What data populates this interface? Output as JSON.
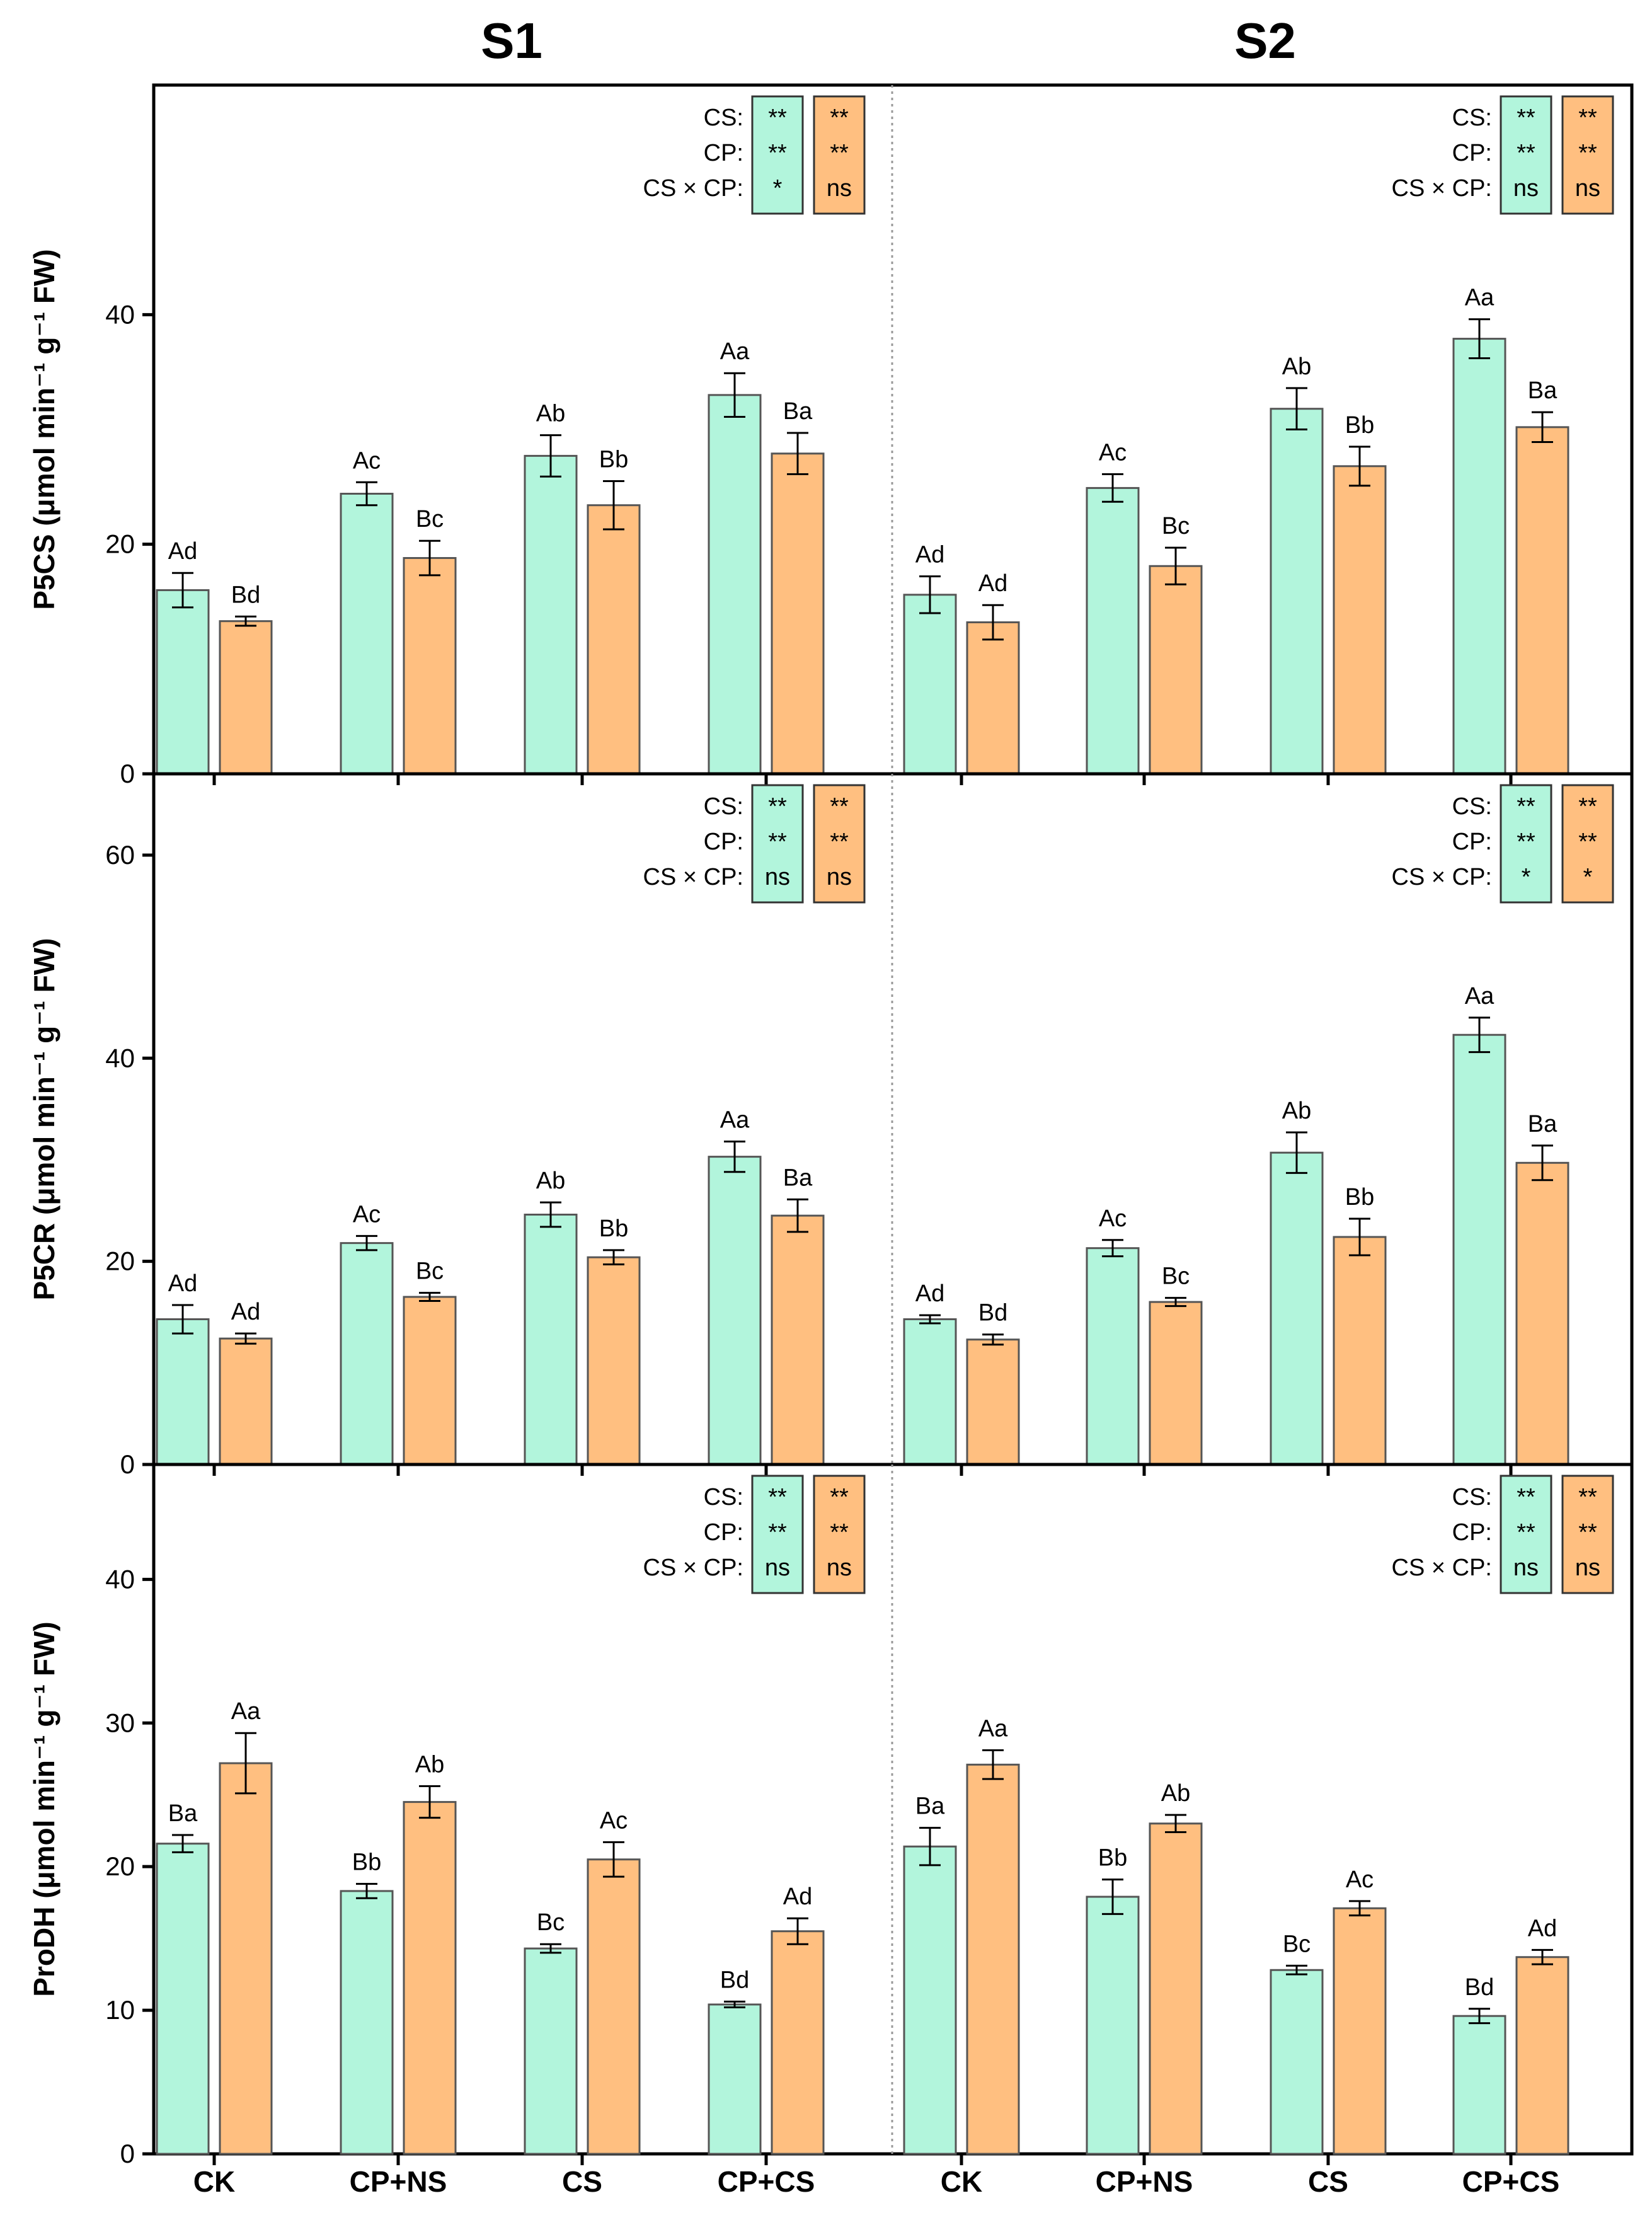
{
  "headers": [
    "S1",
    "S2"
  ],
  "categories": [
    "CK",
    "CP+NS",
    "CS",
    "CP+CS"
  ],
  "colors": {
    "series_a": "#b2f5dc",
    "series_b": "#ffbf80",
    "axis": "#000000",
    "divider": "#999999"
  },
  "chart_data": [
    {
      "type": "bar",
      "ylabel": "P5CS (μmol min⁻¹ g⁻¹ FW)",
      "ylim": [
        0,
        60
      ],
      "yticks": [
        0,
        20,
        40
      ],
      "stat_labels": [
        "CS:",
        "CP:",
        "CS × CP:"
      ],
      "groups": [
        {
          "name": "S1",
          "stat_sig": {
            "a": [
              "**",
              "**",
              "*"
            ],
            "b": [
              "**",
              "**",
              "ns"
            ]
          },
          "series": [
            {
              "name": "A",
              "values": [
                16.0,
                24.4,
                27.7,
                33.0
              ],
              "errors": [
                1.5,
                1.0,
                1.8,
                1.9
              ],
              "letters": [
                "Ad",
                "Ac",
                "Ab",
                "Aa"
              ]
            },
            {
              "name": "B",
              "values": [
                13.3,
                18.8,
                23.4,
                27.9
              ],
              "errors": [
                0.4,
                1.5,
                2.1,
                1.8
              ],
              "letters": [
                "Bd",
                "Bc",
                "Bb",
                "Ba"
              ]
            }
          ]
        },
        {
          "name": "S2",
          "stat_sig": {
            "a": [
              "**",
              "**",
              "ns"
            ],
            "b": [
              "**",
              "**",
              "ns"
            ]
          },
          "series": [
            {
              "name": "A",
              "values": [
                15.6,
                24.9,
                31.8,
                37.9
              ],
              "errors": [
                1.6,
                1.2,
                1.8,
                1.7
              ],
              "letters": [
                "Ad",
                "Ac",
                "Ab",
                "Aa"
              ]
            },
            {
              "name": "B",
              "values": [
                13.2,
                18.1,
                26.8,
                30.2
              ],
              "errors": [
                1.5,
                1.6,
                1.7,
                1.3
              ],
              "letters": [
                "Ad",
                "Bc",
                "Bb",
                "Ba"
              ]
            }
          ]
        }
      ]
    },
    {
      "type": "bar",
      "ylabel": "P5CR (μmol min⁻¹ g⁻¹ FW)",
      "ylim": [
        0,
        68
      ],
      "yticks": [
        0,
        20,
        40,
        60
      ],
      "stat_labels": [
        "CS:",
        "CP:",
        "CS × CP:"
      ],
      "groups": [
        {
          "name": "S1",
          "stat_sig": {
            "a": [
              "**",
              "**",
              "ns"
            ],
            "b": [
              "**",
              "**",
              "ns"
            ]
          },
          "series": [
            {
              "name": "A",
              "values": [
                14.3,
                21.8,
                24.6,
                30.3
              ],
              "errors": [
                1.4,
                0.7,
                1.2,
                1.5
              ],
              "letters": [
                "Ad",
                "Ac",
                "Ab",
                "Aa"
              ]
            },
            {
              "name": "B",
              "values": [
                12.4,
                16.5,
                20.4,
                24.5
              ],
              "errors": [
                0.5,
                0.4,
                0.7,
                1.6
              ],
              "letters": [
                "Ad",
                "Bc",
                "Bb",
                "Ba"
              ]
            }
          ]
        },
        {
          "name": "S2",
          "stat_sig": {
            "a": [
              "**",
              "**",
              "*"
            ],
            "b": [
              "**",
              "**",
              "*"
            ]
          },
          "series": [
            {
              "name": "A",
              "values": [
                14.3,
                21.3,
                30.7,
                42.3
              ],
              "errors": [
                0.4,
                0.8,
                2.0,
                1.7
              ],
              "letters": [
                "Ad",
                "Ac",
                "Ab",
                "Aa"
              ]
            },
            {
              "name": "B",
              "values": [
                12.3,
                16.0,
                22.4,
                29.7
              ],
              "errors": [
                0.5,
                0.4,
                1.8,
                1.7
              ],
              "letters": [
                "Bd",
                "Bc",
                "Bb",
                "Ba"
              ]
            }
          ]
        }
      ]
    },
    {
      "type": "bar",
      "ylabel": "ProDH (μmol min⁻¹ g⁻¹ FW)",
      "ylim": [
        0,
        48
      ],
      "yticks": [
        0,
        10,
        20,
        30,
        40
      ],
      "stat_labels": [
        "CS:",
        "CP:",
        "CS × CP:"
      ],
      "groups": [
        {
          "name": "S1",
          "stat_sig": {
            "a": [
              "**",
              "**",
              "ns"
            ],
            "b": [
              "**",
              "**",
              "ns"
            ]
          },
          "series": [
            {
              "name": "A",
              "values": [
                21.6,
                18.3,
                14.3,
                10.4
              ],
              "errors": [
                0.6,
                0.5,
                0.3,
                0.2
              ],
              "letters": [
                "Ba",
                "Bb",
                "Bc",
                "Bd"
              ]
            },
            {
              "name": "B",
              "values": [
                27.2,
                24.5,
                20.5,
                15.5
              ],
              "errors": [
                2.1,
                1.1,
                1.2,
                0.9
              ],
              "letters": [
                "Aa",
                "Ab",
                "Ac",
                "Ad"
              ]
            }
          ]
        },
        {
          "name": "S2",
          "stat_sig": {
            "a": [
              "**",
              "**",
              "ns"
            ],
            "b": [
              "**",
              "**",
              "ns"
            ]
          },
          "series": [
            {
              "name": "A",
              "values": [
                21.4,
                17.9,
                12.8,
                9.6
              ],
              "errors": [
                1.3,
                1.2,
                0.3,
                0.5
              ],
              "letters": [
                "Ba",
                "Bb",
                "Bc",
                "Bd"
              ]
            },
            {
              "name": "B",
              "values": [
                27.1,
                23.0,
                17.1,
                13.7
              ],
              "errors": [
                1.0,
                0.6,
                0.5,
                0.5
              ],
              "letters": [
                "Aa",
                "Ab",
                "Ac",
                "Ad"
              ]
            }
          ]
        }
      ]
    }
  ]
}
